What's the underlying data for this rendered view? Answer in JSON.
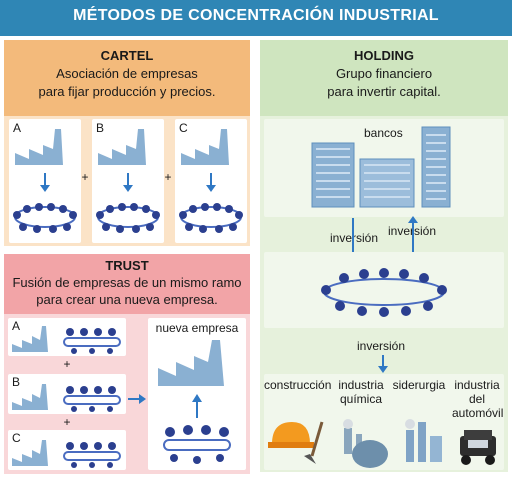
{
  "title": "MÉTODOS DE CONCENTRACIÓN INDUSTRIAL",
  "cartel": {
    "heading": "CARTEL",
    "line1": "Asociación de empresas",
    "line2": "para fijar producción y precios.",
    "companies": [
      "A",
      "B",
      "C"
    ],
    "plus": "+"
  },
  "holding": {
    "heading": "HOLDING",
    "line1": "Grupo financiero",
    "line2": "para invertir capital.",
    "banks_label": "bancos",
    "inversion_left": "inversión",
    "inversion_right": "inversión",
    "inversion_bottom": "inversión",
    "industries": [
      {
        "line1": "construcción",
        "line2": "",
        "line3": ""
      },
      {
        "line1": "industria",
        "line2": "química",
        "line3": ""
      },
      {
        "line1": "siderurgia",
        "line2": "",
        "line3": ""
      },
      {
        "line1": "industria",
        "line2": "del",
        "line3": "automóvil"
      }
    ]
  },
  "trust": {
    "heading": "TRUST",
    "line1": "Fusión de empresas de un mismo ramo",
    "line2": "para crear una nueva empresa.",
    "companies": [
      "A",
      "B",
      "C"
    ],
    "plus": "+",
    "new_company": "nueva empresa"
  },
  "colors": {
    "title_bar": "#2f86b5",
    "cartel": "#f3ba7b",
    "holding": "#cfe5bf",
    "trust": "#f2a4a7",
    "factory": "#8ab0d2",
    "arrow": "#2f78c4",
    "people": "#2b3f8f"
  },
  "icons": [
    "factory-icon",
    "meeting-table-icon",
    "bank-building-icon",
    "hard-hat-icon",
    "chemical-plant-icon",
    "steel-mill-icon",
    "car-icon"
  ]
}
